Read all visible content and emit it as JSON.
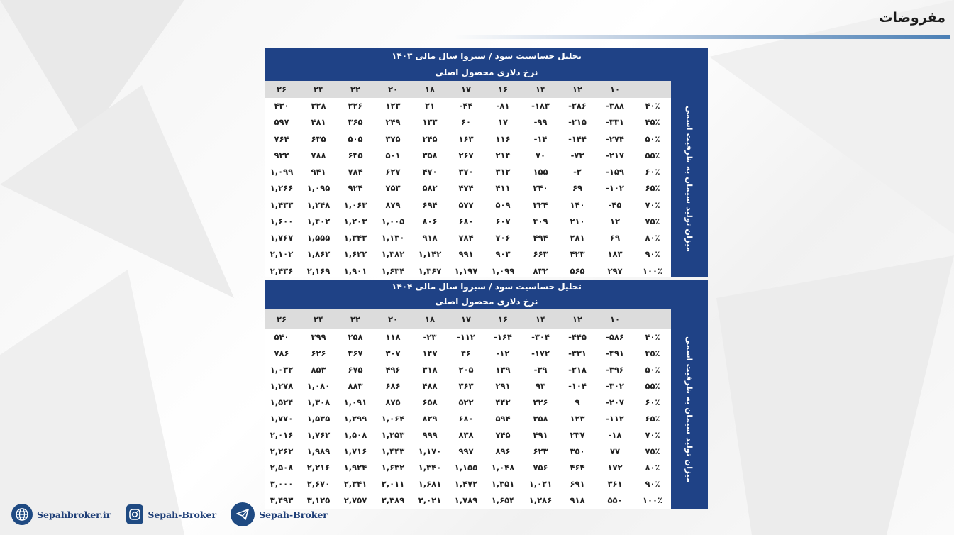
{
  "page_title": "مفروضات",
  "tables": [
    {
      "title": "تحلیل حساسیت سود / سبزوا سال مالی ۱۴۰۳",
      "subtitle": "نرخ دلاری محصول اصلی",
      "side_label": "میزان تولید سیمان به ظرفیت اسمی",
      "columns": [
        "۱۰",
        "۱۲",
        "۱۴",
        "۱۶",
        "۱۷",
        "۱۸",
        "۲۰",
        "۲۲",
        "۲۴",
        "۲۶"
      ],
      "rows": [
        {
          "label": "۴۰٪",
          "cells": [
            "-۳۸۸",
            "-۲۸۶",
            "-۱۸۳",
            "-۸۱",
            "-۴۴",
            "۲۱",
            "۱۲۳",
            "۲۲۶",
            "۳۲۸",
            "۴۳۰"
          ]
        },
        {
          "label": "۴۵٪",
          "cells": [
            "-۳۳۱",
            "-۲۱۵",
            "-۹۹",
            "۱۷",
            "۶۰",
            "۱۳۳",
            "۲۴۹",
            "۳۶۵",
            "۴۸۱",
            "۵۹۷"
          ]
        },
        {
          "label": "۵۰٪",
          "cells": [
            "-۲۷۴",
            "-۱۴۴",
            "-۱۴",
            "۱۱۶",
            "۱۶۳",
            "۲۴۵",
            "۳۷۵",
            "۵۰۵",
            "۶۳۵",
            "۷۶۴"
          ]
        },
        {
          "label": "۵۵٪",
          "cells": [
            "-۲۱۷",
            "-۷۳",
            "۷۰",
            "۲۱۴",
            "۲۶۷",
            "۳۵۸",
            "۵۰۱",
            "۶۴۵",
            "۷۸۸",
            "۹۳۲"
          ]
        },
        {
          "label": "۶۰٪",
          "cells": [
            "-۱۵۹",
            "-۲",
            "۱۵۵",
            "۳۱۲",
            "۳۷۰",
            "۴۷۰",
            "۶۲۷",
            "۷۸۴",
            "۹۴۱",
            "۱,۰۹۹"
          ]
        },
        {
          "label": "۶۵٪",
          "cells": [
            "-۱۰۲",
            "۶۹",
            "۲۴۰",
            "۴۱۱",
            "۴۷۴",
            "۵۸۲",
            "۷۵۳",
            "۹۲۴",
            "۱,۰۹۵",
            "۱,۲۶۶"
          ]
        },
        {
          "label": "۷۰٪",
          "cells": [
            "-۴۵",
            "۱۴۰",
            "۳۲۴",
            "۵۰۹",
            "۵۷۷",
            "۶۹۴",
            "۸۷۹",
            "۱,۰۶۳",
            "۱,۲۴۸",
            "۱,۴۳۳"
          ]
        },
        {
          "label": "۷۵٪",
          "cells": [
            "۱۲",
            "۲۱۰",
            "۴۰۹",
            "۶۰۷",
            "۶۸۰",
            "۸۰۶",
            "۱,۰۰۵",
            "۱,۲۰۳",
            "۱,۴۰۲",
            "۱,۶۰۰"
          ]
        },
        {
          "label": "۸۰٪",
          "cells": [
            "۶۹",
            "۲۸۱",
            "۴۹۴",
            "۷۰۶",
            "۷۸۴",
            "۹۱۸",
            "۱,۱۳۰",
            "۱,۳۴۳",
            "۱,۵۵۵",
            "۱,۷۶۷"
          ]
        },
        {
          "label": "۹۰٪",
          "cells": [
            "۱۸۳",
            "۴۲۳",
            "۶۶۳",
            "۹۰۳",
            "۹۹۱",
            "۱,۱۴۲",
            "۱,۳۸۲",
            "۱,۶۲۲",
            "۱,۸۶۲",
            "۲,۱۰۲"
          ]
        },
        {
          "label": "۱۰۰٪",
          "cells": [
            "۲۹۷",
            "۵۶۵",
            "۸۳۲",
            "۱,۰۹۹",
            "۱,۱۹۷",
            "۱,۳۶۷",
            "۱,۶۳۴",
            "۱,۹۰۱",
            "۲,۱۶۹",
            "۲,۴۳۶"
          ]
        }
      ]
    },
    {
      "title": "تحلیل حساسیت سود / سبزوا سال مالی ۱۴۰۴",
      "subtitle": "نرخ دلاری محصول اصلی",
      "side_label": "میزان تولید سیمان به ظرفیت اسمی",
      "columns": [
        "۱۰",
        "۱۲",
        "۱۴",
        "۱۶",
        "۱۷",
        "۱۸",
        "۲۰",
        "۲۲",
        "۲۴",
        "۲۶"
      ],
      "rows": [
        {
          "label": "۴۰٪",
          "cells": [
            "-۵۸۶",
            "-۴۴۵",
            "-۳۰۴",
            "-۱۶۴",
            "-۱۱۲",
            "-۲۳",
            "۱۱۸",
            "۲۵۸",
            "۳۹۹",
            "۵۴۰"
          ]
        },
        {
          "label": "۴۵٪",
          "cells": [
            "-۴۹۱",
            "-۳۳۱",
            "-۱۷۲",
            "-۱۲",
            "۴۶",
            "۱۴۷",
            "۳۰۷",
            "۴۶۷",
            "۶۲۶",
            "۷۸۶"
          ]
        },
        {
          "label": "۵۰٪",
          "cells": [
            "-۳۹۶",
            "-۲۱۸",
            "-۳۹",
            "۱۳۹",
            "۲۰۵",
            "۳۱۸",
            "۴۹۶",
            "۶۷۵",
            "۸۵۳",
            "۱,۰۳۲"
          ]
        },
        {
          "label": "۵۵٪",
          "cells": [
            "-۳۰۲",
            "-۱۰۴",
            "۹۳",
            "۲۹۱",
            "۳۶۳",
            "۴۸۸",
            "۶۸۶",
            "۸۸۳",
            "۱,۰۸۰",
            "۱,۲۷۸"
          ]
        },
        {
          "label": "۶۰٪",
          "cells": [
            "-۲۰۷",
            "۹",
            "۲۲۶",
            "۴۴۲",
            "۵۲۲",
            "۶۵۸",
            "۸۷۵",
            "۱,۰۹۱",
            "۱,۳۰۸",
            "۱,۵۲۴"
          ]
        },
        {
          "label": "۶۵٪",
          "cells": [
            "-۱۱۲",
            "۱۲۳",
            "۳۵۸",
            "۵۹۴",
            "۶۸۰",
            "۸۲۹",
            "۱,۰۶۴",
            "۱,۲۹۹",
            "۱,۵۳۵",
            "۱,۷۷۰"
          ]
        },
        {
          "label": "۷۰٪",
          "cells": [
            "-۱۸",
            "۲۳۷",
            "۴۹۱",
            "۷۴۵",
            "۸۳۸",
            "۹۹۹",
            "۱,۲۵۳",
            "۱,۵۰۸",
            "۱,۷۶۲",
            "۲,۰۱۶"
          ]
        },
        {
          "label": "۷۵٪",
          "cells": [
            "۷۷",
            "۳۵۰",
            "۶۲۳",
            "۸۹۶",
            "۹۹۷",
            "۱,۱۷۰",
            "۱,۴۴۳",
            "۱,۷۱۶",
            "۱,۹۸۹",
            "۲,۲۶۲"
          ]
        },
        {
          "label": "۸۰٪",
          "cells": [
            "۱۷۲",
            "۴۶۴",
            "۷۵۶",
            "۱,۰۴۸",
            "۱,۱۵۵",
            "۱,۳۴۰",
            "۱,۶۳۲",
            "۱,۹۲۴",
            "۲,۲۱۶",
            "۲,۵۰۸"
          ]
        },
        {
          "label": "۹۰٪",
          "cells": [
            "۳۶۱",
            "۶۹۱",
            "۱,۰۲۱",
            "۱,۳۵۱",
            "۱,۴۷۲",
            "۱,۶۸۱",
            "۲,۰۱۱",
            "۲,۳۴۱",
            "۲,۶۷۰",
            "۳,۰۰۰"
          ]
        },
        {
          "label": "۱۰۰٪",
          "cells": [
            "۵۵۰",
            "۹۱۸",
            "۱,۲۸۶",
            "۱,۶۵۴",
            "۱,۷۸۹",
            "۲,۰۲۱",
            "۲,۳۸۹",
            "۲,۷۵۷",
            "۳,۱۲۵",
            "۳,۴۹۳"
          ]
        }
      ]
    }
  ],
  "footer": {
    "website": "Sepahbroker.ir",
    "instagram": "Sepah-Broker",
    "telegram": "Sepah-Broker",
    "icons": [
      "globe-icon",
      "instagram-icon",
      "telegram-icon"
    ],
    "brand_color": "#1f4a82"
  },
  "colors": {
    "header_blue": "#1f4286",
    "column_header_gray": "#dcdcdc"
  }
}
